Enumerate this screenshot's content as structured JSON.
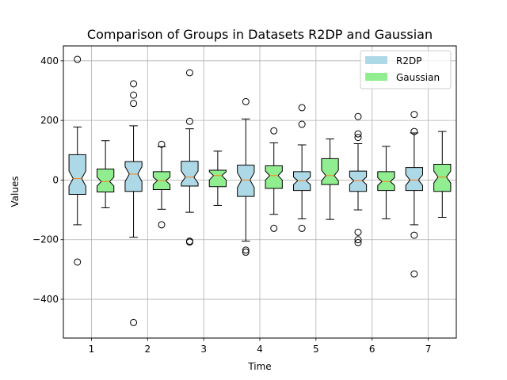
{
  "chart_data": {
    "type": "box",
    "title": "Comparison of Groups in Datasets R2DP and Gaussian",
    "xlabel": "Time",
    "ylabel": "Values",
    "ylim": [
      -530,
      450
    ],
    "xlim": [
      0.5,
      7.5
    ],
    "yticks": [
      -400,
      -200,
      0,
      200,
      400
    ],
    "yticklabels": [
      "−400",
      "−200",
      "0",
      "200",
      "400"
    ],
    "xticks": [
      1,
      2,
      3,
      4,
      5,
      6,
      7
    ],
    "xticklabels": [
      "1",
      "2",
      "3",
      "4",
      "5",
      "6",
      "7"
    ],
    "grid": true,
    "notched": true,
    "legend_position": "top-right",
    "legend": [
      {
        "label": "R2DP",
        "color": "#add8e6"
      },
      {
        "label": "Gaussian",
        "color": "#90ee90"
      }
    ],
    "median_color": "#ff7f0e",
    "series": [
      {
        "name": "R2DP",
        "color": "#add8e6",
        "boxes": [
          {
            "x": 0.75,
            "q1": -48,
            "median": 5,
            "q3": 85,
            "whisker_low": -150,
            "whisker_high": 178,
            "notch_low": -20,
            "notch_high": 30,
            "fliers": [
              405,
              -275
            ]
          },
          {
            "x": 1.75,
            "q1": -38,
            "median": 20,
            "q3": 62,
            "whisker_low": -192,
            "whisker_high": 182,
            "notch_low": -5,
            "notch_high": 45,
            "fliers": [
              323,
              285,
              257,
              -478
            ]
          },
          {
            "x": 2.75,
            "q1": -20,
            "median": 10,
            "q3": 63,
            "whisker_low": -108,
            "whisker_high": 172,
            "notch_low": -10,
            "notch_high": 30,
            "fliers": [
              360,
              197,
              -205,
              -208
            ]
          },
          {
            "x": 3.75,
            "q1": -55,
            "median": 0,
            "q3": 50,
            "whisker_low": -205,
            "whisker_high": 205,
            "notch_low": -25,
            "notch_high": 25,
            "fliers": [
              263,
              -235,
              -242
            ]
          },
          {
            "x": 4.75,
            "q1": -35,
            "median": -2,
            "q3": 28,
            "whisker_low": -130,
            "whisker_high": 118,
            "notch_low": -15,
            "notch_high": 10,
            "fliers": [
              243,
              187,
              -162
            ]
          },
          {
            "x": 5.75,
            "q1": -38,
            "median": -2,
            "q3": 30,
            "whisker_low": -100,
            "whisker_high": 122,
            "notch_low": -15,
            "notch_high": 10,
            "fliers": [
              213,
              155,
              143,
              -175,
              -200,
              -210
            ]
          },
          {
            "x": 6.75,
            "q1": -35,
            "median": 0,
            "q3": 42,
            "whisker_low": -150,
            "whisker_high": 158,
            "notch_low": -18,
            "notch_high": 18,
            "fliers": [
              220,
              163,
              -185,
              -315
            ]
          }
        ]
      },
      {
        "name": "Gaussian",
        "color": "#90ee90",
        "boxes": [
          {
            "x": 1.25,
            "q1": -40,
            "median": -5,
            "q3": 37,
            "whisker_low": -93,
            "whisker_high": 132,
            "notch_low": -20,
            "notch_high": 10,
            "fliers": []
          },
          {
            "x": 2.25,
            "q1": -32,
            "median": -2,
            "q3": 28,
            "whisker_low": -98,
            "whisker_high": 112,
            "notch_low": -15,
            "notch_high": 10,
            "fliers": [
              120,
              -150
            ]
          },
          {
            "x": 3.25,
            "q1": -22,
            "median": 15,
            "q3": 33,
            "whisker_low": -85,
            "whisker_high": 97,
            "notch_low": 0,
            "notch_high": 28,
            "fliers": []
          },
          {
            "x": 4.25,
            "q1": -28,
            "median": 15,
            "q3": 48,
            "whisker_low": -115,
            "whisker_high": 125,
            "notch_low": 0,
            "notch_high": 30,
            "fliers": [
              165,
              -162
            ]
          },
          {
            "x": 5.25,
            "q1": -15,
            "median": 15,
            "q3": 72,
            "whisker_low": -132,
            "whisker_high": 138,
            "notch_low": -3,
            "notch_high": 33,
            "fliers": []
          },
          {
            "x": 6.25,
            "q1": -35,
            "median": -5,
            "q3": 28,
            "whisker_low": -130,
            "whisker_high": 113,
            "notch_low": -18,
            "notch_high": 8,
            "fliers": []
          },
          {
            "x": 7.25,
            "q1": -38,
            "median": 10,
            "q3": 53,
            "whisker_low": -125,
            "whisker_high": 163,
            "notch_low": -10,
            "notch_high": 30,
            "fliers": []
          }
        ]
      }
    ]
  }
}
